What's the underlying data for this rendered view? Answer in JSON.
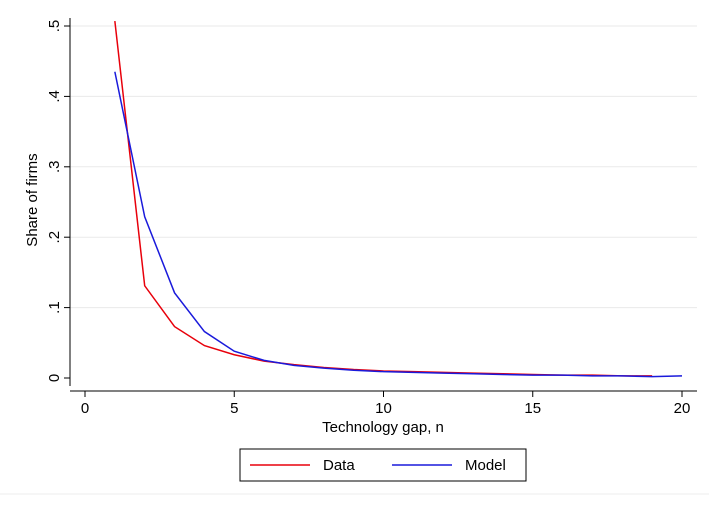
{
  "chart_data": {
    "type": "line",
    "x_label": "Technology gap, n",
    "y_label": "Share of firms",
    "xlim": [
      0,
      20
    ],
    "xticks": [
      0,
      5,
      10,
      15,
      20
    ],
    "ylim": [
      0,
      0.5
    ],
    "yticks": [
      0,
      {
        "value": 0.1,
        "label": ".1"
      },
      {
        "value": 0.2,
        "label": ".2"
      },
      {
        "value": 0.3,
        "label": ".3"
      },
      {
        "value": 0.4,
        "label": ".4"
      },
      {
        "value": 0.5,
        "label": ".5"
      }
    ],
    "grid": true,
    "legend": "bottom",
    "series": [
      {
        "name": "Data",
        "color": "#e8000b",
        "x": [
          1,
          2,
          3,
          4,
          5,
          6,
          7,
          8,
          9,
          10,
          11,
          12,
          13,
          14,
          15,
          16,
          17,
          18,
          19
        ],
        "values": [
          0.507,
          0.131,
          0.073,
          0.046,
          0.033,
          0.024,
          0.019,
          0.015,
          0.012,
          0.01,
          0.009,
          0.008,
          0.007,
          0.006,
          0.005,
          0.004,
          0.004,
          0.003,
          0.003
        ]
      },
      {
        "name": "Model",
        "color": "#1a1adb",
        "x": [
          1,
          2,
          3,
          4,
          5,
          6,
          7,
          8,
          9,
          10,
          11,
          12,
          13,
          14,
          15,
          16,
          17,
          18,
          19,
          20
        ],
        "values": [
          0.435,
          0.229,
          0.121,
          0.066,
          0.038,
          0.025,
          0.018,
          0.014,
          0.011,
          0.009,
          0.008,
          0.007,
          0.006,
          0.005,
          0.004,
          0.004,
          0.003,
          0.003,
          0.002,
          0.003
        ]
      }
    ]
  }
}
